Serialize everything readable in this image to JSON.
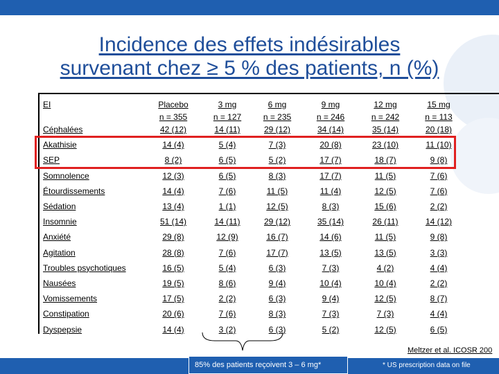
{
  "title": {
    "line1": "Incidence des effets indésirables",
    "line2": "survenant chez ≥ 5 % des patients, n (%)"
  },
  "table": {
    "columns": [
      {
        "name": "EI",
        "sub": ""
      },
      {
        "name": "Placebo",
        "sub": "n = 355"
      },
      {
        "name": "3 mg",
        "sub": "n = 127"
      },
      {
        "name": "6 mg",
        "sub": "n = 235"
      },
      {
        "name": "9 mg",
        "sub": "n = 246"
      },
      {
        "name": "12 mg",
        "sub": "n = 242"
      },
      {
        "name": "15 mg",
        "sub": "n = 113"
      }
    ],
    "rows": [
      {
        "label": "Céphalées",
        "values": [
          "42 (12)",
          "14 (11)",
          "29 (12)",
          "34 (14)",
          "35 (14)",
          "20 (18)"
        ]
      },
      {
        "label": "Akathisie",
        "values": [
          "14 (4)",
          "5 (4)",
          "7 (3)",
          "20 (8)",
          "23 (10)",
          "11 (10)"
        ]
      },
      {
        "label": "SEP",
        "values": [
          "8 (2)",
          "6 (5)",
          "5 (2)",
          "17 (7)",
          "18 (7)",
          "9 (8)"
        ]
      },
      {
        "label": "Somnolence",
        "values": [
          "12 (3)",
          "6 (5)",
          "8 (3)",
          "17 (7)",
          "11 (5)",
          "7 (6)"
        ]
      },
      {
        "label": "Étourdissements",
        "values": [
          "14 (4)",
          "7 (6)",
          "11 (5)",
          "11 (4)",
          "12 (5)",
          "7 (6)"
        ]
      },
      {
        "label": "Sédation",
        "values": [
          "13 (4)",
          "1 (1)",
          "12 (5)",
          "8 (3)",
          "15 (6)",
          "2 (2)"
        ]
      },
      {
        "label": "Insomnie",
        "values": [
          "51 (14)",
          "14 (11)",
          "29 (12)",
          "35 (14)",
          "26 (11)",
          "14 (12)"
        ]
      },
      {
        "label": "Anxiété",
        "values": [
          "29 (8)",
          "12 (9)",
          "16 (7)",
          "14 (6)",
          "11 (5)",
          "9 (8)"
        ]
      },
      {
        "label": "Agitation",
        "values": [
          "28 (8)",
          "7 (6)",
          "17 (7)",
          "13 (5)",
          "13 (5)",
          "3 (3)"
        ]
      },
      {
        "label": "Troubles psychotiques",
        "values": [
          "16 (5)",
          "5 (4)",
          "6 (3)",
          "7 (3)",
          "4 (2)",
          "4 (4)"
        ]
      },
      {
        "label": "Nausées",
        "values": [
          "19 (5)",
          "8 (6)",
          "9 (4)",
          "10 (4)",
          "10 (4)",
          "2 (2)"
        ]
      },
      {
        "label": "Vomissements",
        "values": [
          "17 (5)",
          "2 (2)",
          "6 (3)",
          "9 (4)",
          "12 (5)",
          "8 (7)"
        ]
      },
      {
        "label": "Constipation",
        "values": [
          "20 (6)",
          "7 (6)",
          "8 (3)",
          "7 (3)",
          "7 (3)",
          "4 (4)"
        ]
      },
      {
        "label": "Dyspepsie",
        "values": [
          "14 (4)",
          "3 (2)",
          "6 (3)",
          "5 (2)",
          "12 (5)",
          "6 (5)"
        ]
      }
    ]
  },
  "citation": "Meltzer et al. ICOSR 200",
  "callout": "85% des patients reçoivent 3 – 6 mg*",
  "footnote": "* US prescription data on file",
  "colors": {
    "accent": "#1f5fb0",
    "title": "#1f4e9a",
    "highlight": "#e02020"
  }
}
